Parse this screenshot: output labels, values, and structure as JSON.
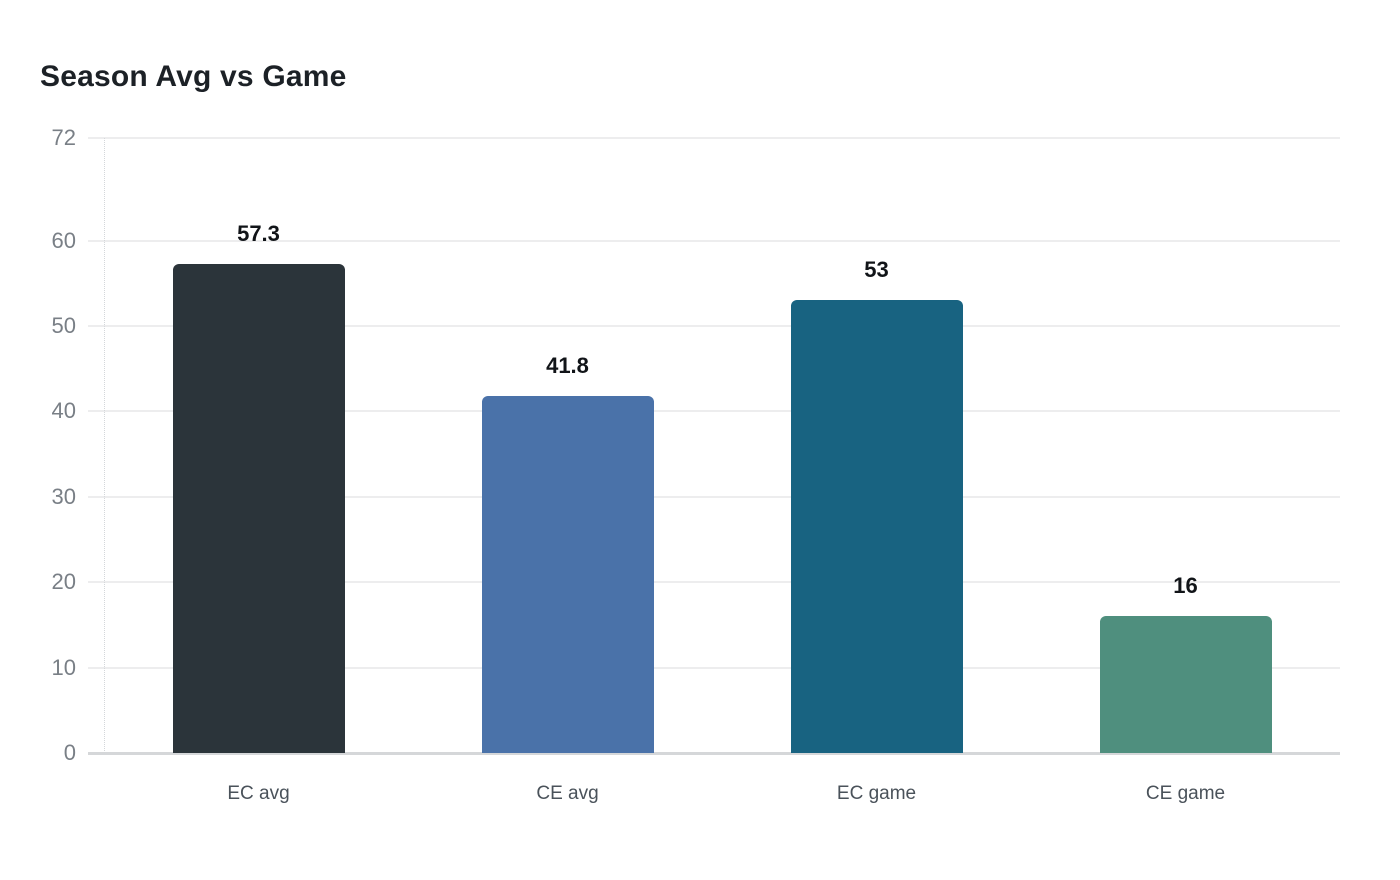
{
  "chart_data": {
    "type": "bar",
    "title": "Season Avg vs Game",
    "categories": [
      "EC avg",
      "CE avg",
      "EC game",
      "CE game"
    ],
    "values": [
      57.3,
      41.8,
      53,
      16
    ],
    "value_labels": [
      "57.3",
      "41.8",
      "53",
      "16"
    ],
    "bar_colors": [
      "#2b343a",
      "#4a72a9",
      "#186381",
      "#4f8f7e"
    ],
    "y_ticks": [
      0,
      10,
      20,
      30,
      40,
      50,
      60,
      72
    ],
    "ylim": [
      0,
      72
    ],
    "xlabel": "",
    "ylabel": "",
    "grid": true,
    "legend_position": "none"
  },
  "colors": {
    "background": "#ffffff",
    "title_text": "#1c2126",
    "value_label_text": "#111418",
    "y_tick_text": "#797f86",
    "x_label_text": "#4a525a",
    "gridline": "#ededee",
    "zero_line": "#d5d7d9",
    "axis_line": "#d4d7da"
  }
}
